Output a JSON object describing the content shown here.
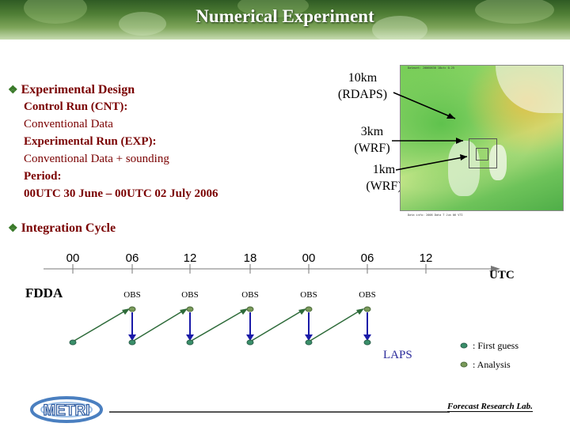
{
  "title": "Numerical Experiment",
  "design": {
    "heading": "Experimental Design",
    "lines": [
      "Control Run (CNT):",
      "Conventional Data",
      "Experimental Run (EXP):",
      "Conventional Data + sounding",
      "Period:",
      "00UTC 30 June – 00UTC 02 July 2006"
    ]
  },
  "domains": [
    {
      "size": "10km",
      "model": "(RDAPS)"
    },
    {
      "size": "3km",
      "model": "(WRF)"
    },
    {
      "size": "1km",
      "model": "(WRF)"
    }
  ],
  "integration": {
    "heading": "Integration Cycle",
    "ticks": [
      "00",
      "06",
      "12",
      "18",
      "00",
      "06",
      "12"
    ],
    "time_unit": "UTC",
    "obs_labels": [
      "OBS",
      "OBS",
      "OBS",
      "OBS",
      "OBS"
    ],
    "fdda_label": "FDDA",
    "laps_label": "LAPS"
  },
  "legend": {
    "first_guess": ": First guess",
    "analysis": ": Analysis"
  },
  "footer": {
    "logo_text": "METRI",
    "lab": "Forecast Research Lab."
  },
  "colors": {
    "text_red": "#7a0000",
    "first_guess": "#3a8f6a",
    "analysis": "#7a9a5a",
    "arrow_blue": "#1a1aa8",
    "arrow_green": "#2e6b3a"
  }
}
